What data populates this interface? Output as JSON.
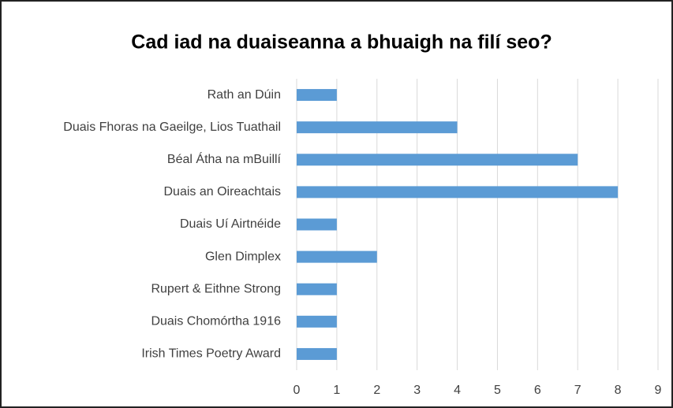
{
  "chart_data": {
    "type": "barh",
    "title": "Cad iad na duaiseanna a bhuaigh na filí seo?",
    "categories": [
      "Rath an Dúin",
      "Duais Fhoras na Gaeilge, Lios Tuathail",
      "Béal Átha na mBuillí",
      "Duais an Oireachtais",
      "Duais Uí Airtnéide",
      "Glen Dimplex",
      "Rupert & Eithne Strong",
      "Duais Chomórtha 1916",
      "Irish Times Poetry Award"
    ],
    "values": [
      1,
      4,
      7,
      8,
      1,
      2,
      1,
      1,
      1
    ],
    "color": "#5b9bd5",
    "xlim": [
      0,
      9
    ],
    "xticks": [
      0,
      1,
      2,
      3,
      4,
      5,
      6,
      7,
      8,
      9
    ],
    "grid": true
  }
}
